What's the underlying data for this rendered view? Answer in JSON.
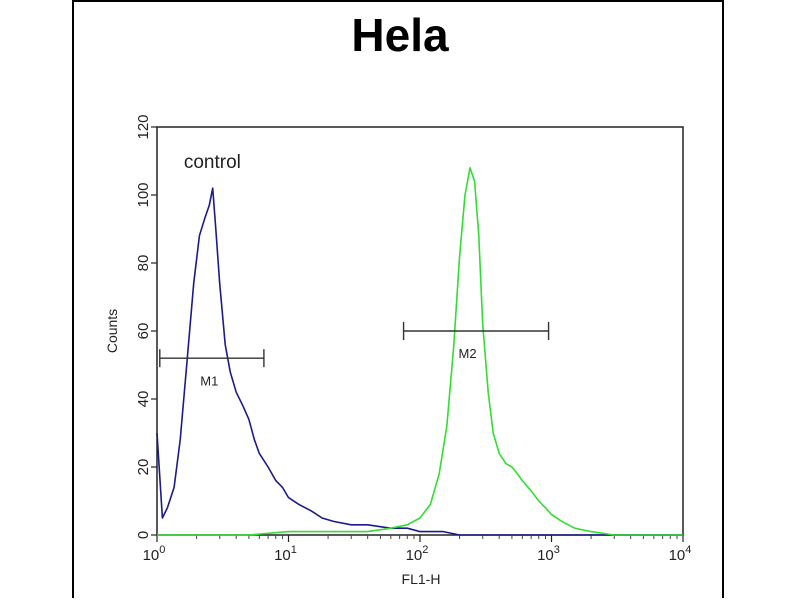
{
  "chart_data": {
    "type": "line",
    "title": "Hela",
    "xlabel": "FL1-H",
    "ylabel": "Counts",
    "x_scale": "log",
    "xlim": [
      1,
      10000
    ],
    "ylim": [
      0,
      120
    ],
    "x_ticks": [
      1,
      10,
      100,
      1000,
      10000
    ],
    "x_tick_base": [
      "10",
      "10",
      "10",
      "10",
      "10"
    ],
    "x_tick_exp": [
      "0",
      "1",
      "2",
      "3",
      "4"
    ],
    "y_ticks": [
      0,
      20,
      40,
      60,
      80,
      100,
      120
    ],
    "grid": false,
    "series": [
      {
        "name": "control",
        "color": "#1a1a8c",
        "x": [
          1,
          1.1,
          1.2,
          1.35,
          1.5,
          1.7,
          1.9,
          2.1,
          2.3,
          2.5,
          2.65,
          2.8,
          3.0,
          3.3,
          3.6,
          4.0,
          4.5,
          5.0,
          5.5,
          6.0,
          7.0,
          8.0,
          9.0,
          10,
          12,
          15,
          18,
          22,
          30,
          40,
          60,
          80,
          100,
          150,
          200,
          400,
          700,
          1000,
          2000,
          5000,
          10000
        ],
        "y": [
          30,
          5,
          8,
          14,
          28,
          52,
          74,
          88,
          93,
          97,
          102,
          90,
          74,
          56,
          48,
          42,
          38,
          34,
          28,
          24,
          20,
          16,
          14,
          11,
          9,
          7,
          5,
          4,
          3,
          3,
          2,
          2,
          1,
          1,
          0,
          0,
          0,
          0,
          0,
          0,
          0
        ]
      },
      {
        "name": "",
        "color": "#33dd33",
        "x": [
          1,
          2,
          5,
          10,
          20,
          40,
          60,
          80,
          100,
          120,
          140,
          160,
          180,
          200,
          220,
          240,
          260,
          280,
          300,
          330,
          360,
          400,
          450,
          500,
          550,
          600,
          700,
          800,
          900,
          1000,
          1200,
          1500,
          2000,
          3000,
          5000,
          10000
        ],
        "y": [
          0,
          0,
          0,
          1,
          1,
          1,
          2,
          3,
          5,
          9,
          18,
          32,
          55,
          82,
          100,
          108,
          104,
          88,
          62,
          42,
          30,
          24,
          21,
          20,
          18,
          16,
          13,
          10,
          8,
          6,
          4,
          2,
          1,
          0,
          0,
          0
        ]
      }
    ],
    "annotations": [
      {
        "text": "control",
        "x": 1.6,
        "y": 108
      },
      {
        "text": "M1",
        "x": 2.5,
        "y": 44
      },
      {
        "text": "M2",
        "x": 230,
        "y": 52
      }
    ],
    "markers": [
      {
        "label": "M1",
        "x_range": [
          1.05,
          6.5
        ],
        "y": 52
      },
      {
        "label": "M2",
        "x_range": [
          75,
          950
        ],
        "y": 60
      }
    ]
  }
}
